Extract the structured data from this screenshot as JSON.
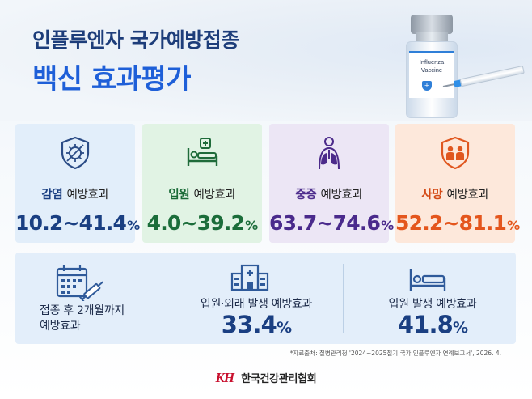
{
  "title": {
    "line1": "인플루엔자 국가예방접종",
    "line2": "백신 효과평가"
  },
  "vial": {
    "label": "Influenza Vaccine"
  },
  "cards": [
    {
      "icon": "virus-shield-icon",
      "label_strong": "감염",
      "label_rest": "예방효과",
      "value": "10.2~41.4",
      "unit": "%",
      "color": "#1a3f82",
      "bg": "#e2eefa"
    },
    {
      "icon": "hospital-bed-icon",
      "label_strong": "입원",
      "label_rest": "예방효과",
      "value": "4.0~39.2",
      "unit": "%",
      "color": "#1b6d3a",
      "bg": "#e1f3e4"
    },
    {
      "icon": "lungs-icon",
      "label_strong": "중증",
      "label_rest": "예방효과",
      "value": "63.7~74.6",
      "unit": "%",
      "color": "#4a2a8c",
      "bg": "#ece6f5"
    },
    {
      "icon": "family-shield-icon",
      "label_strong": "사망",
      "label_rest": "예방효과",
      "value": "52.2~81.1",
      "unit": "%",
      "color": "#e4561d",
      "bg": "#fde8db"
    }
  ],
  "bottom": {
    "col1": {
      "icon": "calendar-syringe-icon",
      "line1": "접종 후 2개월까지",
      "line2": "예방효과"
    },
    "col2": {
      "icon": "hospital-building-icon",
      "label": "입원·외래 발생 예방효과",
      "value": "33.4",
      "unit": "%"
    },
    "col3": {
      "icon": "bed-icon",
      "label": "입원 발생 예방효과",
      "value": "41.8",
      "unit": "%"
    }
  },
  "source": "*자료출처: 질병관리청 '2024~2025절기 국가 인플루엔자 연례보고서', 2026. 4.",
  "footer": {
    "logo": "KH",
    "org": "한국건강관리협회"
  }
}
